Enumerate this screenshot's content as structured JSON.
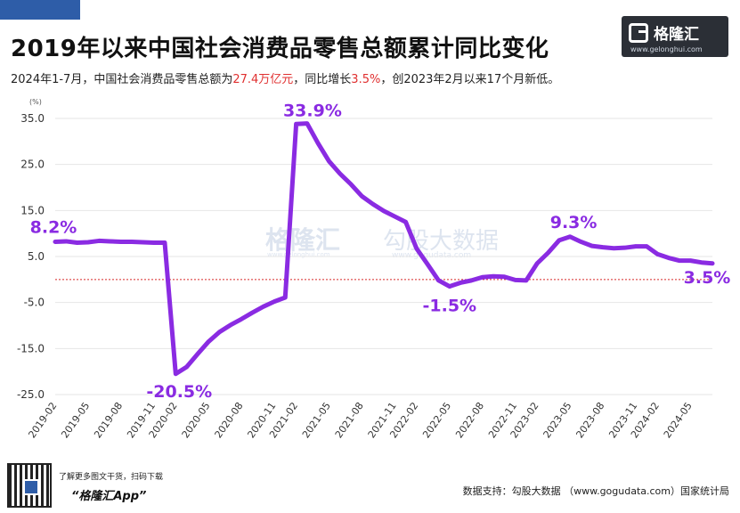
{
  "header": {
    "title": "2019年以来中国社会消费品零售总额累计同比变化",
    "subtitle_pre": "2024年1-7月，中国社会消费品零售总额为",
    "subtitle_hl1": "27.4万亿元",
    "subtitle_mid": "，同比增长",
    "subtitle_hl2": "3.5%",
    "subtitle_post": "，创2023年2月以来17个月新低。"
  },
  "logo": {
    "name": "格隆汇",
    "url": "www.gelonghui.com",
    "icon": "gelonghui-logo-icon"
  },
  "watermark": {
    "brand": "格隆汇",
    "brand_url": "www.gelonghui.com",
    "data_brand": "勾股大数据",
    "data_url": "www.gogudata.com"
  },
  "footer": {
    "cta_line1": "了解更多图文干货，扫码下载",
    "cta_line2": "“格隆汇App”",
    "source": "数据支持：勾股大数据 （www.gogudata.com）国家统计局",
    "qr_icon": "qr-code-icon"
  },
  "colors": {
    "line": "#8a2be2",
    "label": "#8a2be2",
    "zero_line": "#d62728",
    "grid": "#e6e6e6",
    "highlight": "#e03030"
  },
  "chart_data": {
    "type": "line",
    "title": "2019年以来中国社会消费品零售总额累计同比变化",
    "ylabel": "(%)",
    "ylim": [
      -25,
      35
    ],
    "yticks": [
      "35.0",
      "25.0",
      "15.0",
      "5.0",
      "-5.0",
      "-15.0",
      "-25.0"
    ],
    "ytick_values": [
      35,
      25,
      15,
      5,
      -5,
      -15,
      -25
    ],
    "grid": true,
    "xtick_labels": [
      "2019-02",
      "2019-05",
      "2019-08",
      "2019-11",
      "2020-02",
      "2020-05",
      "2020-08",
      "2020-11",
      "2021-02",
      "2021-05",
      "2021-08",
      "2021-11",
      "2022-02",
      "2022-05",
      "2022-08",
      "2022-11",
      "2023-02",
      "2023-05",
      "2023-08",
      "2023-11",
      "2024-02",
      "2024-05"
    ],
    "x": [
      "2019-02",
      "2019-03",
      "2019-04",
      "2019-05",
      "2019-06",
      "2019-07",
      "2019-08",
      "2019-09",
      "2019-10",
      "2019-11",
      "2019-12",
      "2020-02",
      "2020-03",
      "2020-04",
      "2020-05",
      "2020-06",
      "2020-07",
      "2020-08",
      "2020-09",
      "2020-10",
      "2020-11",
      "2020-12",
      "2021-02",
      "2021-03",
      "2021-04",
      "2021-05",
      "2021-06",
      "2021-07",
      "2021-08",
      "2021-09",
      "2021-10",
      "2021-11",
      "2021-12",
      "2022-02",
      "2022-03",
      "2022-04",
      "2022-05",
      "2022-06",
      "2022-07",
      "2022-08",
      "2022-09",
      "2022-10",
      "2022-11",
      "2022-12",
      "2023-02",
      "2023-03",
      "2023-04",
      "2023-05",
      "2023-06",
      "2023-07",
      "2023-08",
      "2023-09",
      "2023-10",
      "2023-11",
      "2023-12",
      "2024-02",
      "2024-03",
      "2024-04",
      "2024-05",
      "2024-06",
      "2024-07"
    ],
    "values": [
      8.2,
      8.3,
      8.0,
      8.1,
      8.4,
      8.3,
      8.2,
      8.2,
      8.1,
      8.0,
      8.0,
      -20.5,
      -19.0,
      -16.2,
      -13.5,
      -11.4,
      -9.9,
      -8.6,
      -7.2,
      -5.9,
      -4.8,
      -3.9,
      33.8,
      33.9,
      29.6,
      25.7,
      23.0,
      20.7,
      18.1,
      16.4,
      14.9,
      13.7,
      12.5,
      6.7,
      3.3,
      -0.2,
      -1.5,
      -0.7,
      -0.2,
      0.5,
      0.7,
      0.6,
      -0.1,
      -0.2,
      3.5,
      5.8,
      8.5,
      9.3,
      8.2,
      7.3,
      7.0,
      6.8,
      6.9,
      7.2,
      7.2,
      5.5,
      4.7,
      4.1,
      4.1,
      3.7,
      3.5
    ],
    "annotations": [
      {
        "x": "2019-02",
        "value": 8.2,
        "text": "8.2%"
      },
      {
        "x": "2020-02",
        "value": -20.5,
        "text": "-20.5%"
      },
      {
        "x": "2021-03",
        "value": 33.9,
        "text": "33.9%"
      },
      {
        "x": "2022-05",
        "value": -1.5,
        "text": "-1.5%"
      },
      {
        "x": "2023-05",
        "value": 9.3,
        "text": "9.3%"
      },
      {
        "x": "2024-07",
        "value": 3.5,
        "text": "3.5%"
      }
    ],
    "reference_line": 0
  }
}
